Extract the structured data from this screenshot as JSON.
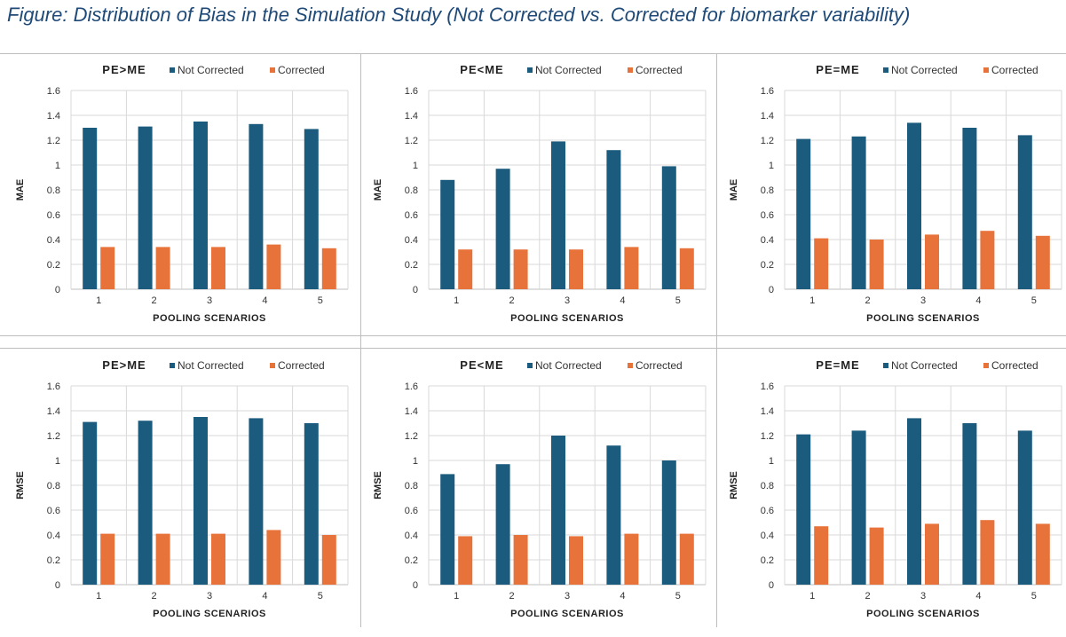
{
  "figure": {
    "title": "Figure:  Distribution of Bias in the Simulation Study (Not Corrected vs. Corrected for biomarker variability)"
  },
  "colors": {
    "not_corrected": "#1b5b7e",
    "corrected": "#e8733a",
    "grid": "#d9d9d9",
    "axis": "#bfbfbf"
  },
  "chart_data": [
    {
      "type": "bar",
      "title": "PE>ME",
      "xlabel": "POOLING SCENARIOS",
      "ylabel": "MAE",
      "categories": [
        "1",
        "2",
        "3",
        "4",
        "5"
      ],
      "ylim": [
        0,
        1.6
      ],
      "yticks": [
        "0",
        "0.2",
        "0.4",
        "0.6",
        "0.8",
        "1",
        "1.2",
        "1.4",
        "1.6"
      ],
      "legend_position": "top",
      "series": [
        {
          "name": "Not Corrected",
          "values": [
            1.3,
            1.31,
            1.35,
            1.33,
            1.29
          ]
        },
        {
          "name": "Corrected",
          "values": [
            0.34,
            0.34,
            0.34,
            0.36,
            0.33
          ]
        }
      ]
    },
    {
      "type": "bar",
      "title": "PE<ME",
      "xlabel": "POOLING SCENARIOS",
      "ylabel": "MAE",
      "categories": [
        "1",
        "2",
        "3",
        "4",
        "5"
      ],
      "ylim": [
        0,
        1.6
      ],
      "yticks": [
        "0",
        "0.2",
        "0.4",
        "0.6",
        "0.8",
        "1",
        "1.2",
        "1.4",
        "1.6"
      ],
      "legend_position": "top",
      "series": [
        {
          "name": "Not Corrected",
          "values": [
            0.88,
            0.97,
            1.19,
            1.12,
            0.99
          ]
        },
        {
          "name": "Corrected",
          "values": [
            0.32,
            0.32,
            0.32,
            0.34,
            0.33
          ]
        }
      ]
    },
    {
      "type": "bar",
      "title": "PE=ME",
      "xlabel": "POOLING SCENARIOS",
      "ylabel": "MAE",
      "categories": [
        "1",
        "2",
        "3",
        "4",
        "5"
      ],
      "ylim": [
        0,
        1.6
      ],
      "yticks": [
        "0",
        "0.2",
        "0.4",
        "0.6",
        "0.8",
        "1",
        "1.2",
        "1.4",
        "1.6"
      ],
      "legend_position": "top",
      "series": [
        {
          "name": "Not Corrected",
          "values": [
            1.21,
            1.23,
            1.34,
            1.3,
            1.24
          ]
        },
        {
          "name": "Corrected",
          "values": [
            0.41,
            0.4,
            0.44,
            0.47,
            0.43
          ]
        }
      ]
    },
    {
      "type": "bar",
      "title": "PE>ME",
      "xlabel": "POOLING SCENARIOS",
      "ylabel": "RMSE",
      "categories": [
        "1",
        "2",
        "3",
        "4",
        "5"
      ],
      "ylim": [
        0,
        1.6
      ],
      "yticks": [
        "0",
        "0.2",
        "0.4",
        "0.6",
        "0.8",
        "1",
        "1.2",
        "1.4",
        "1.6"
      ],
      "legend_position": "top",
      "series": [
        {
          "name": "Not Corrected",
          "values": [
            1.31,
            1.32,
            1.35,
            1.34,
            1.3
          ]
        },
        {
          "name": "Corrected",
          "values": [
            0.41,
            0.41,
            0.41,
            0.44,
            0.4
          ]
        }
      ]
    },
    {
      "type": "bar",
      "title": "PE<ME",
      "xlabel": "POOLING SCENARIOS",
      "ylabel": "RMSE",
      "categories": [
        "1",
        "2",
        "3",
        "4",
        "5"
      ],
      "ylim": [
        0,
        1.6
      ],
      "yticks": [
        "0",
        "0.2",
        "0.4",
        "0.6",
        "0.8",
        "1",
        "1.2",
        "1.4",
        "1.6"
      ],
      "legend_position": "top",
      "series": [
        {
          "name": "Not Corrected",
          "values": [
            0.89,
            0.97,
            1.2,
            1.12,
            1.0
          ]
        },
        {
          "name": "Corrected",
          "values": [
            0.39,
            0.4,
            0.39,
            0.41,
            0.41
          ]
        }
      ]
    },
    {
      "type": "bar",
      "title": "PE=ME",
      "xlabel": "POOLING SCENARIOS",
      "ylabel": "RMSE",
      "categories": [
        "1",
        "2",
        "3",
        "4",
        "5"
      ],
      "ylim": [
        0,
        1.6
      ],
      "yticks": [
        "0",
        "0.2",
        "0.4",
        "0.6",
        "0.8",
        "1",
        "1.2",
        "1.4",
        "1.6"
      ],
      "legend_position": "top",
      "series": [
        {
          "name": "Not Corrected",
          "values": [
            1.21,
            1.24,
            1.34,
            1.3,
            1.24
          ]
        },
        {
          "name": "Corrected",
          "values": [
            0.47,
            0.46,
            0.49,
            0.52,
            0.49
          ]
        }
      ]
    }
  ]
}
